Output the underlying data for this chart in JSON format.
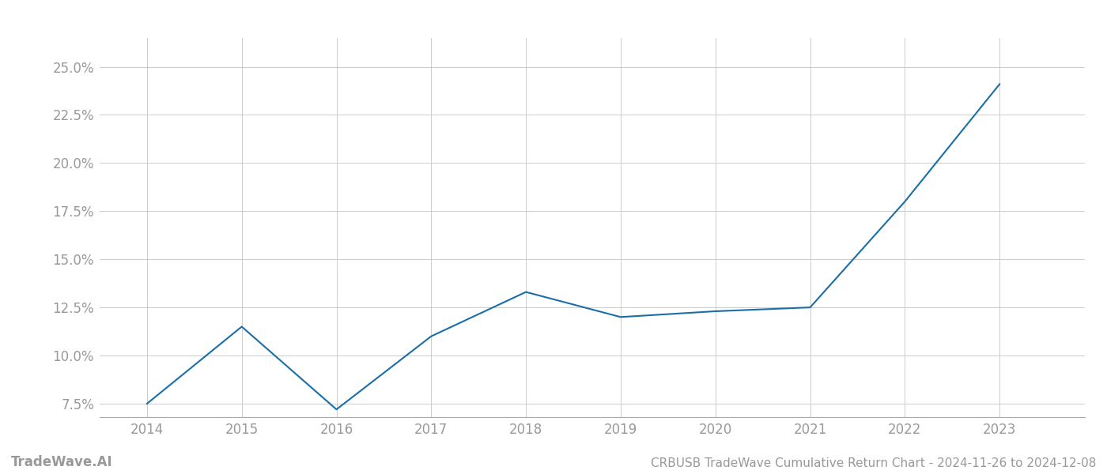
{
  "x_years": [
    2014,
    2015,
    2016,
    2017,
    2018,
    2019,
    2020,
    2021,
    2022,
    2023
  ],
  "y_values": [
    7.5,
    11.5,
    7.2,
    11.0,
    13.3,
    12.0,
    12.3,
    12.5,
    18.0,
    24.1
  ],
  "line_color": "#1a6ea8",
  "line_width": 1.5,
  "background_color": "#ffffff",
  "grid_color": "#cccccc",
  "title": "CRBUSB TradeWave Cumulative Return Chart - 2024-11-26 to 2024-12-08",
  "watermark": "TradeWave.AI",
  "ylabel_ticks": [
    7.5,
    10.0,
    12.5,
    15.0,
    17.5,
    20.0,
    22.5,
    25.0
  ],
  "ylim": [
    6.8,
    26.5
  ],
  "xlim": [
    2013.5,
    2023.9
  ],
  "tick_color": "#999999",
  "tick_fontsize": 12,
  "title_fontsize": 11,
  "watermark_fontsize": 12,
  "spine_color": "#aaaaaa"
}
